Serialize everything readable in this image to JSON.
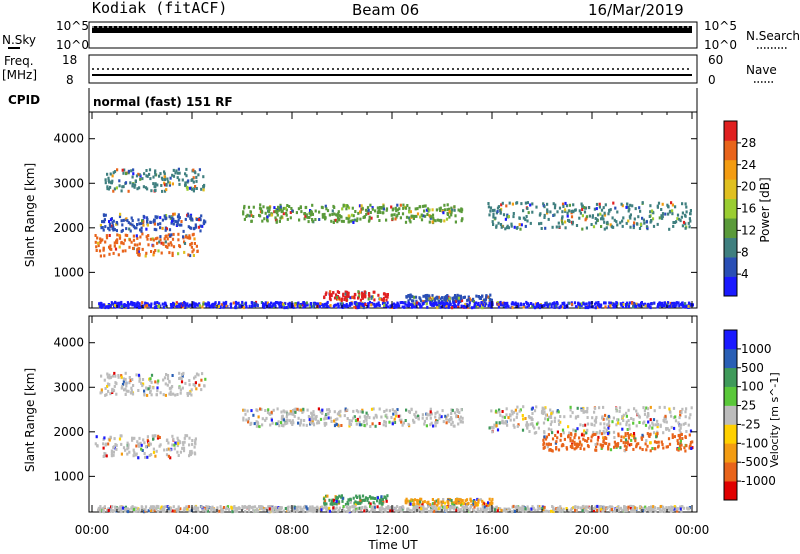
{
  "header": {
    "station": "Kodiak (fitACF)",
    "beam": "Beam 06",
    "date": "16/Mar/2019"
  },
  "panels": {
    "nsky_label": "N.Sky",
    "nsky_ticks": [
      "10^5",
      "10^0"
    ],
    "nsearch_label": "N.Search",
    "nsearch_ticks": [
      "10^5",
      "10^0"
    ],
    "freq_label_line1": "Freq.",
    "freq_label_line2": "[MHz]",
    "freq_ticks": [
      "18",
      "8"
    ],
    "nave_label": "Nave",
    "nave_ticks": [
      "60",
      "0"
    ],
    "cpid_label": "CPID",
    "cpid_text": "normal (fast) 151 RF"
  },
  "chart_data": [
    {
      "type": "heatmap",
      "title": "",
      "xlabel": "Time UT",
      "ylabel": "Slant Range [km]",
      "x_ticks": [
        "00:00",
        "04:00",
        "08:00",
        "12:00",
        "16:00",
        "20:00",
        "00:00"
      ],
      "xlim_hours": [
        0,
        24
      ],
      "y_ticks": [
        1000,
        2000,
        3000,
        4000
      ],
      "ylim": [
        200,
        4600
      ],
      "colorbar": {
        "label": "Power [dB]",
        "ticks": [
          "4",
          "8",
          "12",
          "16",
          "20",
          "24",
          "28"
        ],
        "range": [
          0,
          30
        ],
        "colors": [
          "#1a1aff",
          "#2a4fb5",
          "#3f7f7f",
          "#5a9a3a",
          "#9acd32",
          "#e0c020",
          "#f39c12",
          "#e8641b",
          "#e02020"
        ]
      },
      "scatter_regions": [
        {
          "t_start": 0.1,
          "t_end": 4.2,
          "range_center": 1650,
          "range_width": 500,
          "color": "#e8641b"
        },
        {
          "t_start": 0.3,
          "t_end": 4.5,
          "range_center": 2150,
          "range_width": 400,
          "color": "#2a4fb5"
        },
        {
          "t_start": 0.5,
          "t_end": 4.5,
          "range_center": 3100,
          "range_width": 500,
          "color": "#3f7f7f"
        },
        {
          "t_start": 6.0,
          "t_end": 14.8,
          "range_center": 2350,
          "range_width": 400,
          "color": "#5a9a3a"
        },
        {
          "t_start": 15.8,
          "t_end": 24.0,
          "range_center": 2300,
          "range_width": 600,
          "color": "#3f7f7f"
        },
        {
          "t_start": 9.2,
          "t_end": 11.8,
          "range_center": 500,
          "range_width": 200,
          "color": "#e02020"
        },
        {
          "t_start": 12.5,
          "t_end": 16.0,
          "range_center": 450,
          "range_width": 150,
          "color": "#2a4fb5"
        },
        {
          "t_start": 0.2,
          "t_end": 24.0,
          "range_center": 300,
          "range_width": 120,
          "color": "#1a1aff"
        }
      ]
    },
    {
      "type": "heatmap",
      "title": "",
      "xlabel": "Time UT",
      "ylabel": "Slant Range [km]",
      "x_ticks": [
        "00:00",
        "04:00",
        "08:00",
        "12:00",
        "16:00",
        "20:00",
        "00:00"
      ],
      "xlim_hours": [
        0,
        24
      ],
      "y_ticks": [
        1000,
        2000,
        3000,
        4000
      ],
      "ylim": [
        200,
        4600
      ],
      "colorbar": {
        "label": "Velocity [m s^-1]",
        "ticks": [
          "1000",
          "500",
          "100",
          "25",
          "-25",
          "-100",
          "-500",
          "-1000"
        ],
        "range": [
          -1000,
          1000
        ],
        "colors": [
          "#e00000",
          "#e8641b",
          "#f39c12",
          "#ffd000",
          "#bcbcbc",
          "#5ac83a",
          "#3f9a5a",
          "#2a5fb5",
          "#1a1aff"
        ]
      },
      "scatter_regions": [
        {
          "t_start": 0.1,
          "t_end": 4.2,
          "range_center": 1700,
          "range_width": 500,
          "color": "#bcbcbc"
        },
        {
          "t_start": 0.3,
          "t_end": 4.5,
          "range_center": 3100,
          "range_width": 500,
          "color": "#bcbcbc"
        },
        {
          "t_start": 6.0,
          "t_end": 14.8,
          "range_center": 2350,
          "range_width": 400,
          "color": "#bcbcbc"
        },
        {
          "t_start": 15.8,
          "t_end": 24.0,
          "range_center": 2300,
          "range_width": 600,
          "color": "#bcbcbc"
        },
        {
          "t_start": 18.0,
          "t_end": 24.0,
          "range_center": 1800,
          "range_width": 400,
          "color": "#e8641b"
        },
        {
          "t_start": 9.2,
          "t_end": 11.8,
          "range_center": 500,
          "range_width": 200,
          "color": "#3f9a5a"
        },
        {
          "t_start": 12.5,
          "t_end": 16.0,
          "range_center": 450,
          "range_width": 150,
          "color": "#f39c12"
        },
        {
          "t_start": 0.2,
          "t_end": 24.0,
          "range_center": 300,
          "range_width": 120,
          "color": "#bcbcbc"
        }
      ]
    }
  ]
}
